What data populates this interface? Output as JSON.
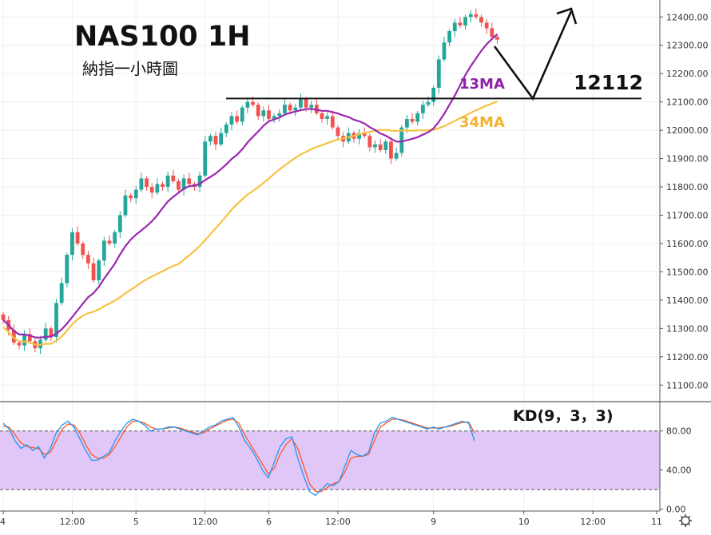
{
  "chart_data": {
    "type": "candlestick",
    "title": "NAS100 1H",
    "subtitle": "納指一小時圖",
    "colors": {
      "up": "#26a69a",
      "down": "#ef5350",
      "ma13": "#9c27b0",
      "ma34": "#f5c242",
      "kd_k": "#2196f3",
      "kd_d": "#ff5722",
      "kd_band": "#e1c7f7"
    },
    "price_axis": {
      "range": [
        11050,
        12460
      ],
      "ticks": [
        "11100.00",
        "11200.00",
        "11300.00",
        "11400.00",
        "11500.00",
        "11600.00",
        "11700.00",
        "11800.00",
        "11900.00",
        "12000.00",
        "12100.00",
        "12200.00",
        "12300.00",
        "12400.00"
      ]
    },
    "kd_axis": {
      "range": [
        -2,
        110
      ],
      "ticks": [
        "0.00",
        "40.00",
        "80.00"
      ],
      "band": [
        20,
        80
      ]
    },
    "time_axis": {
      "ticks": [
        {
          "label": "4",
          "i": 0
        },
        {
          "label": "12:00",
          "i": 13
        },
        {
          "label": "5",
          "i": 25
        },
        {
          "label": "12:00",
          "i": 38
        },
        {
          "label": "6",
          "i": 50
        },
        {
          "label": "12:00",
          "i": 63
        },
        {
          "label": "9",
          "i": 81
        },
        {
          "label": "10",
          "i": 98
        },
        {
          "label": "12:00",
          "i": 111
        },
        {
          "label": "11",
          "i": 123
        }
      ]
    },
    "resistance_level": 12112,
    "resistance_label": "12112",
    "annotations": {
      "ma13_label": "13MA",
      "ma34_label": "34MA",
      "kd_label": "KD(9，3，3)"
    },
    "closes": [
      11330,
      11295,
      11250,
      11240,
      11280,
      11255,
      11230,
      11260,
      11300,
      11270,
      11390,
      11460,
      11560,
      11640,
      11600,
      11560,
      11530,
      11470,
      11540,
      11610,
      11600,
      11640,
      11700,
      11770,
      11760,
      11790,
      11830,
      11800,
      11780,
      11810,
      11800,
      11840,
      11820,
      11790,
      11830,
      11810,
      11800,
      11840,
      11960,
      11980,
      11950,
      11990,
      12020,
      12050,
      12030,
      12080,
      12100,
      12090,
      12050,
      12070,
      12040,
      12050,
      12060,
      12090,
      12070,
      12080,
      12110,
      12080,
      12090,
      12060,
      12040,
      12050,
      12010,
      11980,
      11960,
      11990,
      11970,
      11990,
      11980,
      11940,
      11950,
      11930,
      11960,
      11900,
      11920,
      12010,
      12040,
      12030,
      12060,
      12090,
      12100,
      12150,
      12250,
      12310,
      12350,
      12380,
      12370,
      12400,
      12410,
      12400,
      12380,
      12360,
      12330,
      12320
    ],
    "kd_k": [
      88,
      82,
      70,
      62,
      66,
      60,
      64,
      52,
      62,
      78,
      86,
      90,
      84,
      72,
      60,
      50,
      50,
      54,
      58,
      70,
      80,
      88,
      92,
      90,
      86,
      80,
      82,
      82,
      84,
      84,
      82,
      80,
      78,
      76,
      80,
      84,
      86,
      90,
      92,
      94,
      84,
      70,
      62,
      52,
      40,
      32,
      48,
      64,
      72,
      74,
      52,
      34,
      18,
      14,
      20,
      26,
      24,
      28,
      44,
      60,
      56,
      54,
      58,
      78,
      88,
      90,
      94,
      92,
      90,
      88,
      86,
      84,
      82,
      84,
      82,
      84,
      86,
      88,
      90,
      88,
      70
    ],
    "kd_d": [
      85,
      84,
      76,
      68,
      64,
      63,
      62,
      56,
      58,
      70,
      82,
      87,
      86,
      78,
      66,
      56,
      52,
      52,
      56,
      64,
      74,
      84,
      90,
      90,
      88,
      84,
      82,
      82,
      83,
      84,
      83,
      81,
      79,
      77,
      78,
      82,
      85,
      88,
      91,
      92,
      88,
      76,
      66,
      56,
      46,
      36,
      42,
      56,
      66,
      72,
      62,
      44,
      26,
      18,
      18,
      22,
      26,
      28,
      38,
      52,
      54,
      54,
      56,
      70,
      84,
      88,
      92,
      92,
      91,
      89,
      87,
      85,
      83,
      83,
      83,
      84,
      85,
      87,
      89,
      89,
      78
    ]
  }
}
